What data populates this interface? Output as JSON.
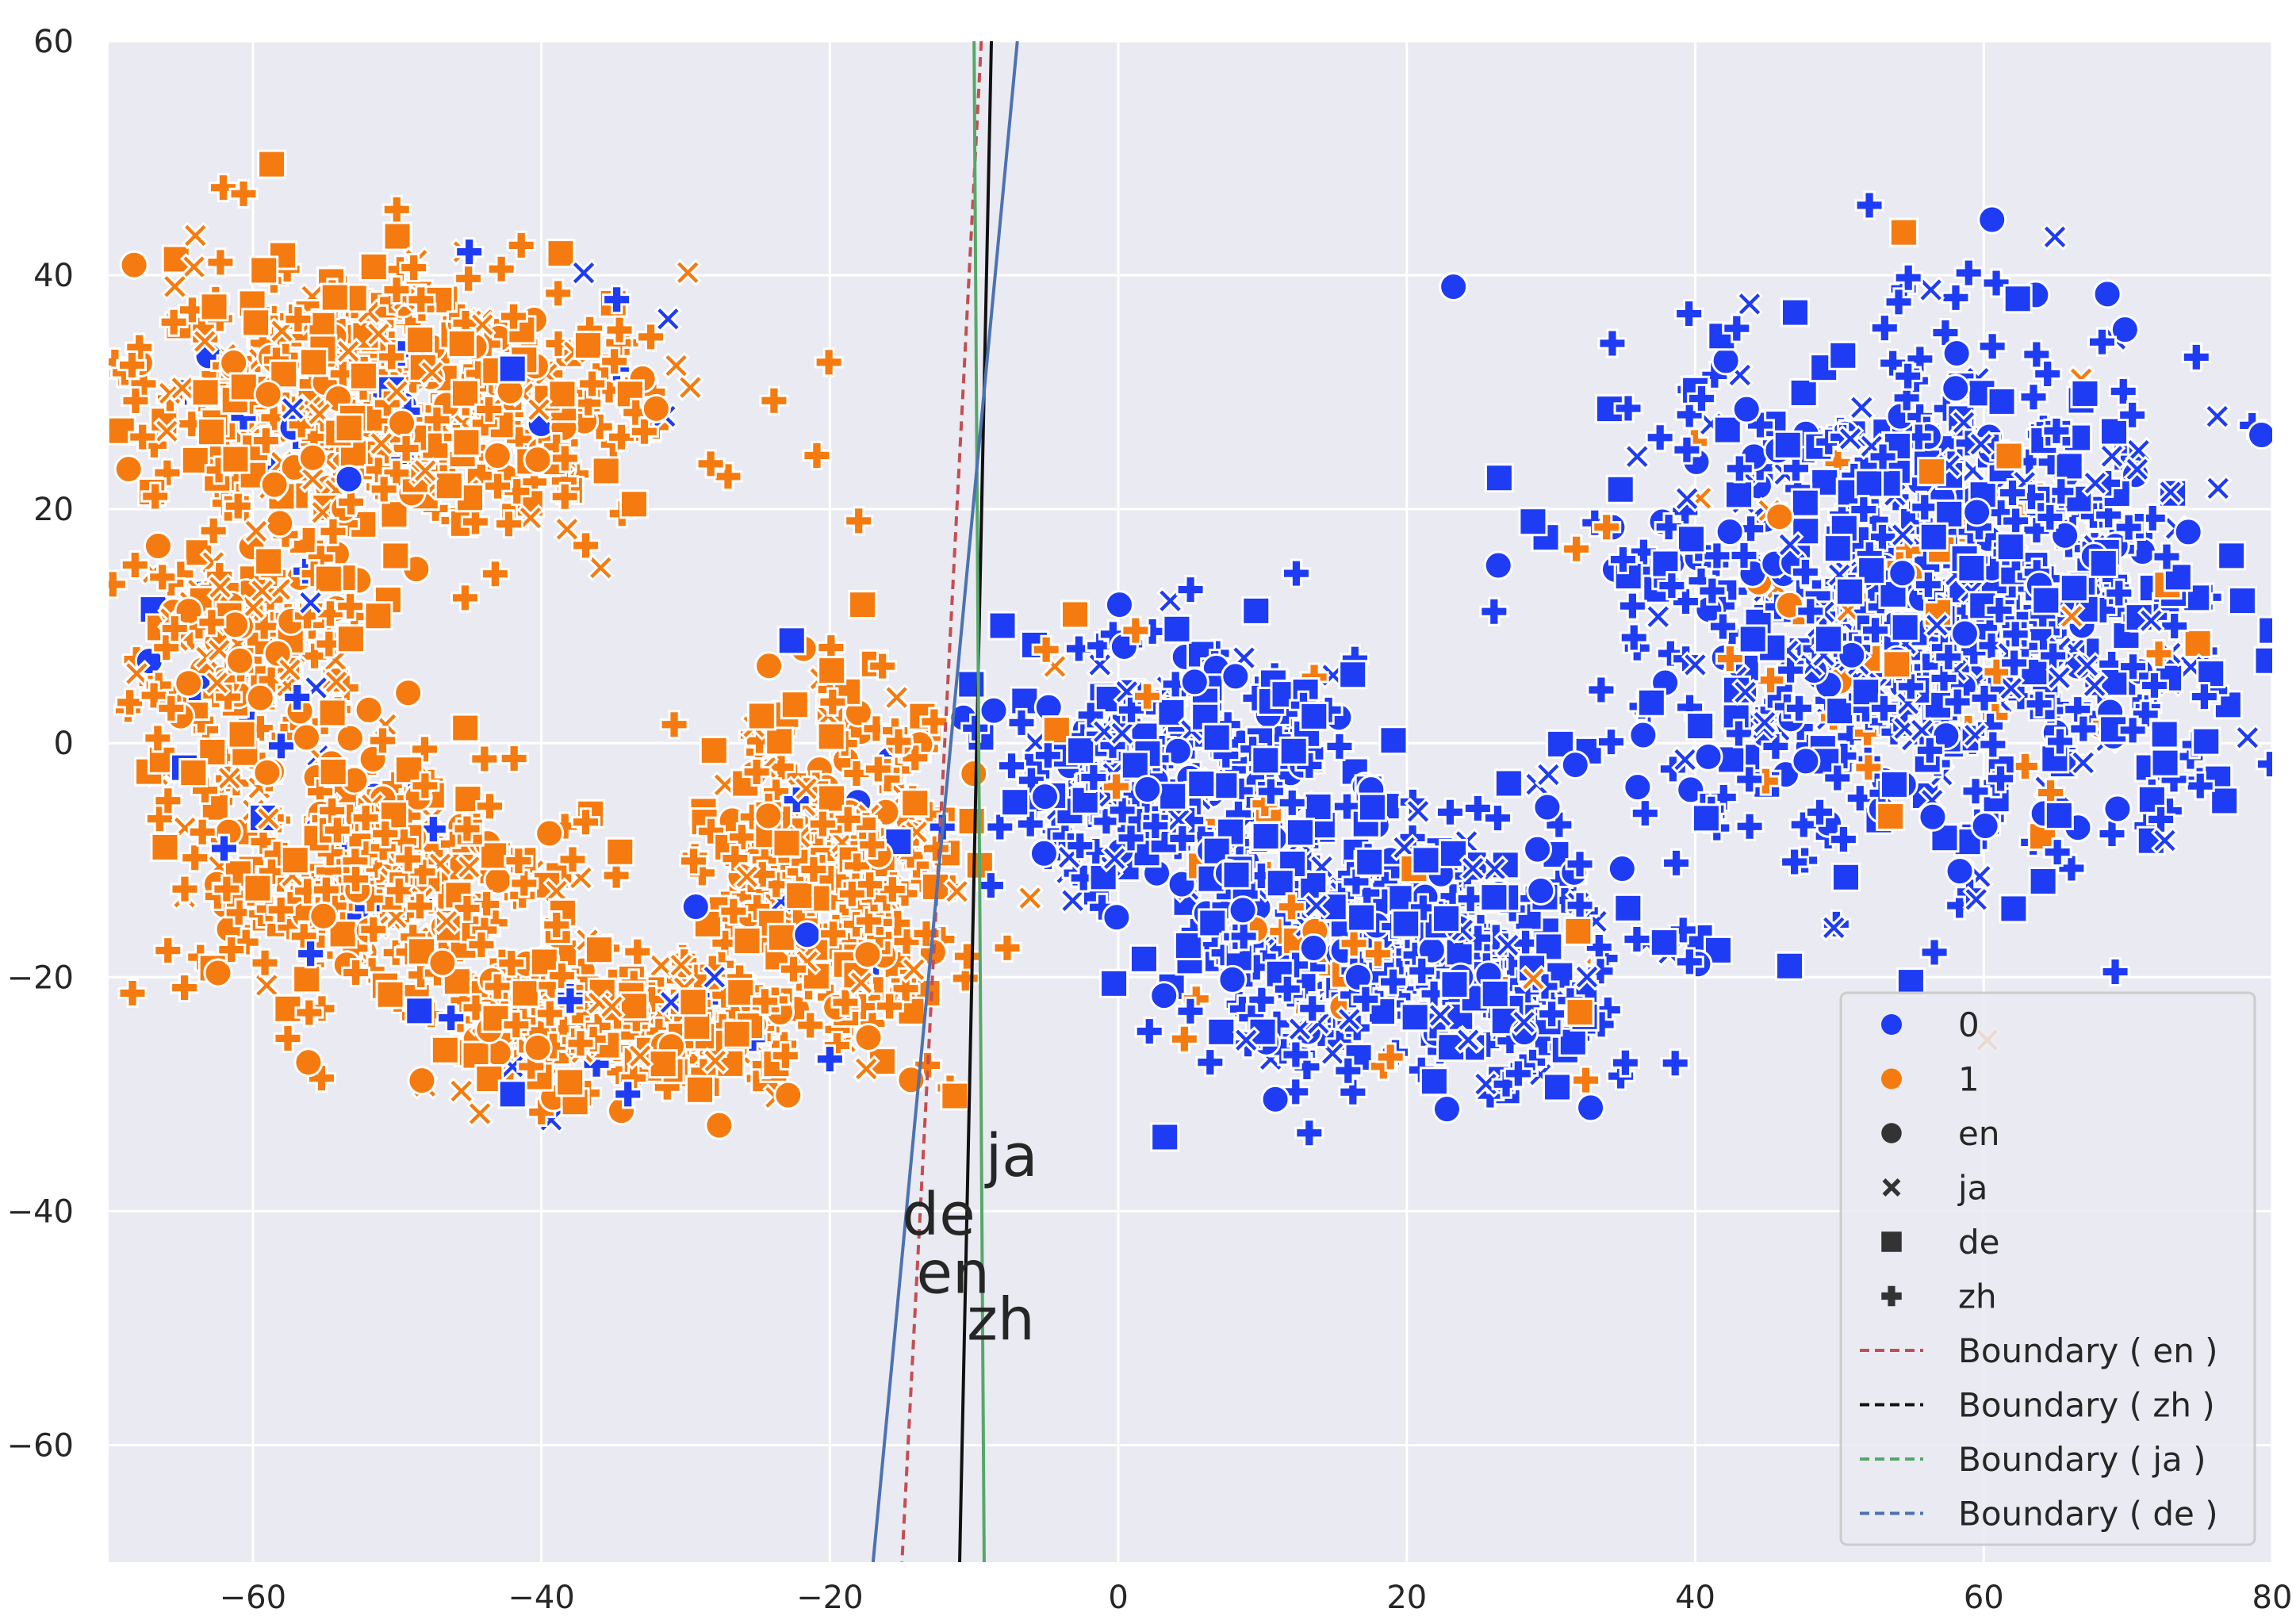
{
  "chart_data": {
    "type": "scatter",
    "title": "",
    "xlabel": "",
    "ylabel": "",
    "xlim": [
      -70,
      80
    ],
    "ylim": [
      -70,
      60
    ],
    "grid": true,
    "legend_position": "lower-right",
    "x_ticks": [
      -60,
      -40,
      -20,
      0,
      20,
      40,
      60,
      80
    ],
    "y_ticks": [
      -60,
      -40,
      -20,
      0,
      20,
      40,
      60
    ],
    "x_tick_labels": [
      "−60",
      "−40",
      "−20",
      "0",
      "20",
      "40",
      "60",
      "80"
    ],
    "y_tick_labels": [
      "−60",
      "−40",
      "−20",
      "0",
      "20",
      "40",
      "60"
    ],
    "colors": {
      "0": "#1f3cf5",
      "1": "#f57b10"
    },
    "clusters": [
      {
        "name": "left-arc-top",
        "label": "1",
        "cx": -50,
        "cy": 30,
        "rx": 18,
        "ry": 11,
        "n": 520
      },
      {
        "name": "left-arc-mid",
        "label": "1",
        "cx": -60,
        "cy": 8,
        "rx": 8,
        "ry": 14,
        "n": 220
      },
      {
        "name": "left-arc-bottom",
        "label": "1",
        "cx": -52,
        "cy": -12,
        "rx": 12,
        "ry": 10,
        "n": 300
      },
      {
        "name": "bottom-tail",
        "label": "1",
        "cx": -35,
        "cy": -24,
        "rx": 12,
        "ry": 6,
        "n": 320
      },
      {
        "name": "center-left",
        "label": "1",
        "cx": -20,
        "cy": -10,
        "rx": 8,
        "ry": 14,
        "n": 360
      },
      {
        "name": "center",
        "label": "0",
        "cx": 4,
        "cy": -2,
        "rx": 12,
        "ry": 10,
        "n": 300
      },
      {
        "name": "lower-middle",
        "label": "0",
        "cx": 20,
        "cy": -18,
        "rx": 15,
        "ry": 10,
        "n": 420
      },
      {
        "name": "right-blob",
        "label": "0",
        "cx": 56,
        "cy": 12,
        "rx": 20,
        "ry": 20,
        "n": 860
      }
    ],
    "scattered_minority": [
      {
        "label": "0",
        "marker": "zh",
        "x": -45,
        "y": 42
      },
      {
        "label": "0",
        "marker": "ja",
        "x": -56,
        "y": 12
      },
      {
        "label": "0",
        "marker": "de",
        "x": -42,
        "y": 32
      },
      {
        "label": "0",
        "marker": "zh",
        "x": -56,
        "y": -18
      },
      {
        "label": "0",
        "marker": "zh",
        "x": -62,
        "y": -9
      },
      {
        "label": "0",
        "marker": "ja",
        "x": -28,
        "y": -20
      },
      {
        "label": "0",
        "marker": "zh",
        "x": -38,
        "y": -22
      },
      {
        "label": "0",
        "marker": "zh",
        "x": -34,
        "y": -30
      },
      {
        "label": "0",
        "marker": "de",
        "x": -42,
        "y": -30
      },
      {
        "label": "0",
        "marker": "zh",
        "x": -20,
        "y": -27
      },
      {
        "label": "1",
        "marker": "zh",
        "x": -18,
        "y": 19
      },
      {
        "label": "1",
        "marker": "de",
        "x": 32,
        "y": -23
      },
      {
        "label": "1",
        "marker": "zh",
        "x": 12,
        "y": -14
      },
      {
        "label": "1",
        "marker": "zh",
        "x": 18,
        "y": -18
      },
      {
        "label": "1",
        "marker": "de",
        "x": -3,
        "y": 11
      },
      {
        "label": "1",
        "marker": "zh",
        "x": -5,
        "y": 8
      },
      {
        "label": "1",
        "marker": "zh",
        "x": 2,
        "y": 4
      }
    ],
    "boundaries": [
      {
        "name": "Boundary ( en )",
        "color": "#c44e52",
        "dash": "dashed",
        "x_at_top": -9.5,
        "x_at_bottom": -15
      },
      {
        "name": "Boundary ( zh )",
        "color": "#111111",
        "dash": "solid",
        "x_at_top": -8.8,
        "x_at_bottom": -11
      },
      {
        "name": "Boundary ( ja )",
        "color": "#55a868",
        "dash": "solid",
        "x_at_top": -10,
        "x_at_bottom": -9.3
      },
      {
        "name": "Boundary ( de )",
        "color": "#4c72b0",
        "dash": "solid",
        "x_at_top": -7,
        "x_at_bottom": -17
      }
    ],
    "annotations": [
      {
        "text": "ja",
        "x": -9.2,
        "y": -37
      },
      {
        "text": "de",
        "x": -15,
        "y": -42
      },
      {
        "text": "en",
        "x": -14,
        "y": -47
      },
      {
        "text": "zh",
        "x": -10.5,
        "y": -51
      }
    ],
    "legend": {
      "hue_entries": [
        {
          "label": "0",
          "color": "#1f3cf5"
        },
        {
          "label": "1",
          "color": "#f57b10"
        }
      ],
      "marker_entries": [
        {
          "label": "en",
          "marker": "circle"
        },
        {
          "label": "ja",
          "marker": "x"
        },
        {
          "label": "de",
          "marker": "square"
        },
        {
          "label": "zh",
          "marker": "plus"
        }
      ],
      "line_entries": [
        {
          "label": "Boundary ( en )",
          "color": "#c44e52"
        },
        {
          "label": "Boundary ( zh )",
          "color": "#111111"
        },
        {
          "label": "Boundary ( ja )",
          "color": "#55a868"
        },
        {
          "label": "Boundary ( de )",
          "color": "#4c72b0"
        }
      ]
    }
  }
}
